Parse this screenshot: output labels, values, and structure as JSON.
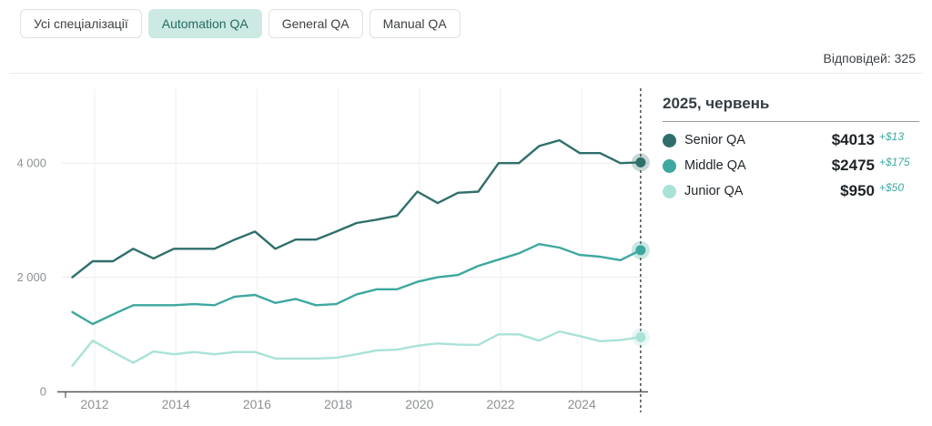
{
  "tabs": {
    "items": [
      {
        "label": "Усі спеціалізації",
        "selected": false
      },
      {
        "label": "Automation QA",
        "selected": true
      },
      {
        "label": "General QA",
        "selected": false
      },
      {
        "label": "Manual QA",
        "selected": false
      }
    ]
  },
  "header": {
    "responses_label": "Відповідей: 325"
  },
  "legend": {
    "title": "2025, червень",
    "rows": [
      {
        "label": "Senior QA",
        "value": "$4013",
        "delta": "+$13",
        "color": "#2f6f6b"
      },
      {
        "label": "Middle QA",
        "value": "$2475",
        "delta": "+$175",
        "color": "#3da8a0"
      },
      {
        "label": "Junior QA",
        "value": "$950",
        "delta": "+$50",
        "color": "#a9e2d8"
      }
    ]
  },
  "chart_data": {
    "type": "line",
    "title": "2025, червень",
    "xlabel": "",
    "ylabel": "",
    "x": [
      2011.45,
      2011.95,
      2012.45,
      2012.95,
      2013.45,
      2013.95,
      2014.45,
      2014.95,
      2015.45,
      2015.95,
      2016.45,
      2016.95,
      2017.45,
      2017.95,
      2018.45,
      2018.95,
      2019.45,
      2019.95,
      2020.45,
      2020.95,
      2021.45,
      2021.95,
      2022.45,
      2022.95,
      2023.45,
      2023.95,
      2024.45,
      2024.95,
      2025.45
    ],
    "series": [
      {
        "name": "Senior QA",
        "color": "#2f6f6b",
        "values": [
          2000,
          2280,
          2280,
          2500,
          2330,
          2500,
          2500,
          2500,
          2660,
          2800,
          2500,
          2660,
          2660,
          2800,
          2950,
          3010,
          3080,
          3500,
          3300,
          3480,
          3500,
          4000,
          4000,
          4300,
          4400,
          4175,
          4175,
          4000,
          4013
        ]
      },
      {
        "name": "Middle QA",
        "color": "#3da8a0",
        "values": [
          1390,
          1180,
          1350,
          1510,
          1510,
          1510,
          1530,
          1510,
          1660,
          1690,
          1550,
          1620,
          1510,
          1530,
          1700,
          1790,
          1790,
          1920,
          2000,
          2040,
          2200,
          2310,
          2420,
          2580,
          2520,
          2390,
          2360,
          2300,
          2475
        ]
      },
      {
        "name": "Junior QA",
        "color": "#a9e2d8",
        "values": [
          450,
          890,
          690,
          500,
          700,
          650,
          690,
          650,
          690,
          690,
          575,
          575,
          575,
          590,
          650,
          720,
          730,
          800,
          840,
          820,
          815,
          1000,
          1000,
          890,
          1050,
          970,
          880,
          900,
          950
        ]
      }
    ],
    "x_ticks": [
      2012,
      2014,
      2016,
      2018,
      2020,
      2022,
      2024
    ],
    "y_ticks": [
      {
        "value": 0,
        "label": "0"
      },
      {
        "value": 2000,
        "label": "2 000"
      },
      {
        "value": 4000,
        "label": "4 000"
      }
    ],
    "xlim": [
      2011.2,
      2025.6
    ],
    "ylim": [
      0,
      5300
    ],
    "grid": true,
    "legend_position": "right",
    "marker_x": 2025.45
  }
}
